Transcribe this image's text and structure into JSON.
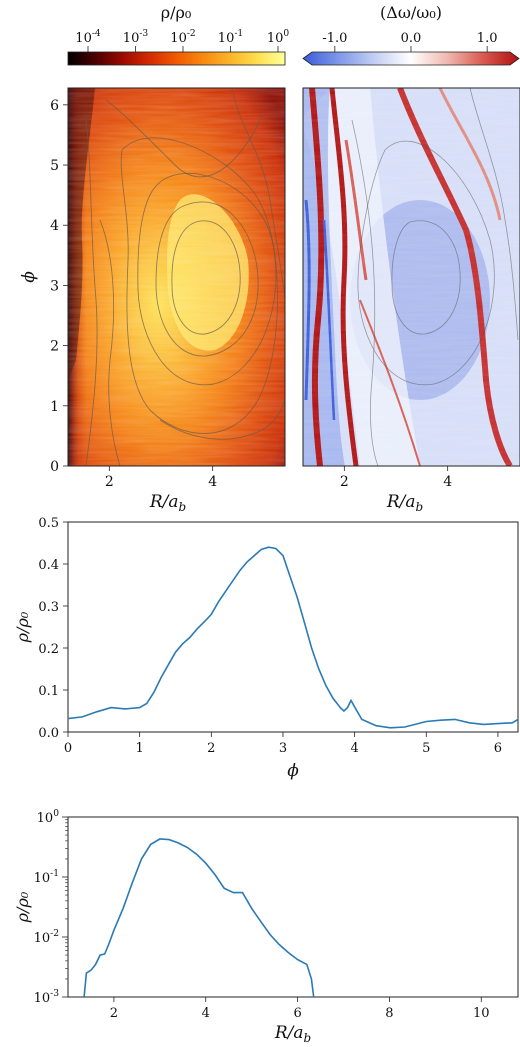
{
  "chart_data": [
    {
      "type": "heatmap",
      "panel": "density-map",
      "colorbar_label": "ρ/ρ₀",
      "colorbar_scale": "log",
      "colorbar_ticks": [
        {
          "base": "10",
          "exp": "-4"
        },
        {
          "base": "10",
          "exp": "-3"
        },
        {
          "base": "10",
          "exp": "-2"
        },
        {
          "base": "10",
          "exp": "-1"
        },
        {
          "base": "10",
          "exp": "0"
        }
      ],
      "colormap": [
        "#000000",
        "#4a0000",
        "#9a0a00",
        "#d42a00",
        "#f05a00",
        "#f88a10",
        "#fbb52a",
        "#fde050",
        "#ffff9a"
      ],
      "xlabel": "R/a",
      "xlabel_sub": "b",
      "ylabel": "ϕ",
      "xlim": [
        1.2,
        5.4
      ],
      "ylim": [
        0,
        6.28
      ],
      "xticks": [
        "2",
        "4"
      ],
      "yticks": [
        "0",
        "1",
        "2",
        "3",
        "4",
        "5",
        "6"
      ],
      "peak": {
        "R": 3.2,
        "phi": 2.7,
        "value": 0.44
      }
    },
    {
      "type": "heatmap",
      "panel": "frequency-map",
      "colorbar_label": "(Δω/ω₀)",
      "colorbar_ticks": [
        "-1.0",
        "0.0",
        "1.0"
      ],
      "colorbar_range": [
        -1.3,
        1.3
      ],
      "colormap": [
        "#3a5cd8",
        "#7f98e8",
        "#c4cff2",
        "#ffffff",
        "#f0b9b0",
        "#d85a50",
        "#b01010"
      ],
      "xlabel": "R/a",
      "xlabel_sub": "b",
      "xlim": [
        1.2,
        5.4
      ],
      "ylim": [
        0,
        6.28
      ],
      "xticks": [
        "2",
        "4"
      ]
    },
    {
      "type": "line",
      "panel": "azimuthal-profile",
      "xlabel": "ϕ",
      "ylabel": "ρ/ρ₀",
      "xlim": [
        0,
        6.28
      ],
      "ylim": [
        0,
        0.5
      ],
      "xticks": [
        "0",
        "1",
        "2",
        "3",
        "4",
        "5",
        "6"
      ],
      "yticks": [
        "0.0",
        "0.1",
        "0.2",
        "0.3",
        "0.4",
        "0.5"
      ],
      "color": "#2a7ab5",
      "x": [
        0,
        0.2,
        0.4,
        0.6,
        0.8,
        1.0,
        1.1,
        1.2,
        1.3,
        1.4,
        1.5,
        1.6,
        1.7,
        1.8,
        1.9,
        2.0,
        2.1,
        2.2,
        2.3,
        2.4,
        2.5,
        2.6,
        2.7,
        2.8,
        2.9,
        3.0,
        3.1,
        3.2,
        3.3,
        3.4,
        3.5,
        3.6,
        3.7,
        3.8,
        3.85,
        3.9,
        3.95,
        4.0,
        4.1,
        4.3,
        4.5,
        4.7,
        5.0,
        5.2,
        5.4,
        5.6,
        5.8,
        6.0,
        6.2,
        6.28
      ],
      "y": [
        0.032,
        0.036,
        0.048,
        0.058,
        0.055,
        0.058,
        0.068,
        0.095,
        0.13,
        0.16,
        0.19,
        0.21,
        0.225,
        0.245,
        0.262,
        0.28,
        0.31,
        0.335,
        0.36,
        0.385,
        0.405,
        0.42,
        0.435,
        0.44,
        0.437,
        0.42,
        0.37,
        0.32,
        0.26,
        0.2,
        0.15,
        0.11,
        0.08,
        0.058,
        0.05,
        0.058,
        0.075,
        0.06,
        0.03,
        0.015,
        0.01,
        0.012,
        0.025,
        0.028,
        0.03,
        0.022,
        0.018,
        0.02,
        0.022,
        0.03
      ]
    },
    {
      "type": "line",
      "panel": "radial-profile",
      "xlabel": "R/a",
      "xlabel_sub": "b",
      "ylabel": "ρ/ρ₀",
      "y_scale": "log",
      "xlim": [
        1.0,
        10.8
      ],
      "ylim": [
        0.001,
        1.0
      ],
      "xticks": [
        "2",
        "4",
        "6",
        "8",
        "10"
      ],
      "yticks": [
        {
          "base": "10",
          "exp": "0"
        },
        {
          "base": "10",
          "exp": "-1"
        },
        {
          "base": "10",
          "exp": "-2"
        },
        {
          "base": "10",
          "exp": "-3"
        }
      ],
      "color": "#2a7ab5",
      "x": [
        1.35,
        1.4,
        1.5,
        1.6,
        1.7,
        1.8,
        1.9,
        2.0,
        2.2,
        2.4,
        2.6,
        2.8,
        3.0,
        3.2,
        3.4,
        3.6,
        3.8,
        4.0,
        4.2,
        4.4,
        4.6,
        4.8,
        5.0,
        5.2,
        5.4,
        5.6,
        5.8,
        6.0,
        6.2,
        6.3,
        6.35
      ],
      "y": [
        0.001,
        0.0025,
        0.0028,
        0.0035,
        0.005,
        0.0052,
        0.008,
        0.013,
        0.03,
        0.08,
        0.2,
        0.35,
        0.43,
        0.42,
        0.37,
        0.31,
        0.24,
        0.17,
        0.11,
        0.065,
        0.055,
        0.055,
        0.03,
        0.018,
        0.011,
        0.0075,
        0.0055,
        0.0042,
        0.0035,
        0.002,
        0.001
      ]
    }
  ]
}
